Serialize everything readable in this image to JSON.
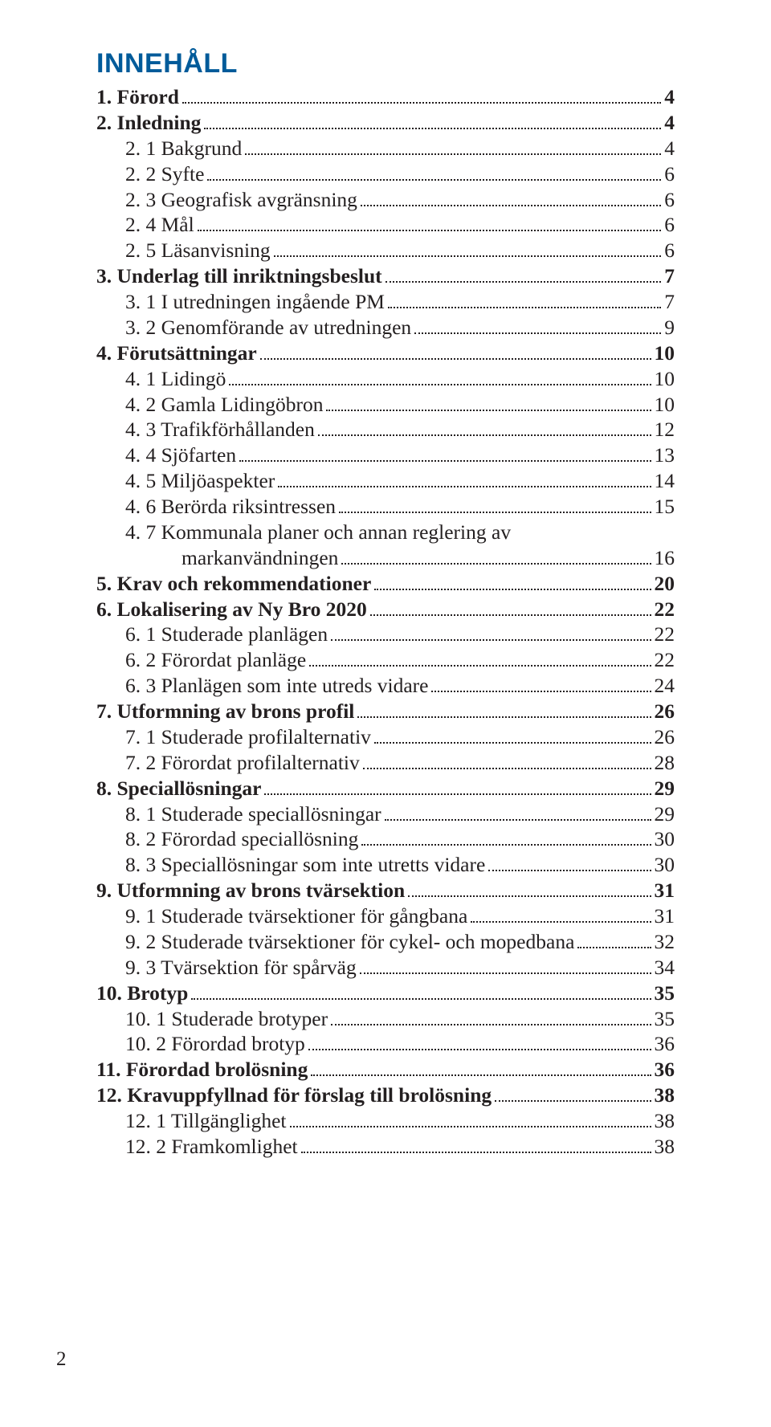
{
  "title": "INNEHÅLL",
  "title_color": "#005b9a",
  "title_fontsize": 34,
  "body_fontsize": 25.5,
  "body_color": "#231f20",
  "page_number": "2",
  "page_number_fontsize": 25,
  "entries": [
    {
      "label": "1. Förord",
      "page": "4",
      "indent": 0,
      "bold": true
    },
    {
      "label": "2. Inledning",
      "page": "4",
      "indent": 0,
      "bold": true
    },
    {
      "label": "2. 1 Bakgrund",
      "page": "4",
      "indent": 1,
      "bold": false
    },
    {
      "label": "2. 2 Syfte",
      "page": "6",
      "indent": 1,
      "bold": false
    },
    {
      "label": "2. 3 Geografisk avgränsning",
      "page": "6",
      "indent": 1,
      "bold": false
    },
    {
      "label": "2. 4 Mål",
      "page": "6",
      "indent": 1,
      "bold": false
    },
    {
      "label": "2. 5 Läsanvisning",
      "page": "6",
      "indent": 1,
      "bold": false
    },
    {
      "label": "3. Underlag till inriktningsbeslut",
      "page": "7",
      "indent": 0,
      "bold": true
    },
    {
      "label": "3. 1 I utredningen ingående PM",
      "page": "7",
      "indent": 1,
      "bold": false
    },
    {
      "label": "3. 2 Genomförande av utredningen",
      "page": "9",
      "indent": 1,
      "bold": false
    },
    {
      "label": "4. Förutsättningar",
      "page": "10",
      "indent": 0,
      "bold": true
    },
    {
      "label": "4. 1 Lidingö",
      "page": "10",
      "indent": 1,
      "bold": false
    },
    {
      "label": "4. 2 Gamla Lidingöbron",
      "page": "10",
      "indent": 1,
      "bold": false
    },
    {
      "label": "4. 3 Trafikförhållanden",
      "page": "12",
      "indent": 1,
      "bold": false
    },
    {
      "label": "4. 4 Sjöfarten",
      "page": "13",
      "indent": 1,
      "bold": false
    },
    {
      "label": "4. 5 Miljöaspekter",
      "page": "14",
      "indent": 1,
      "bold": false
    },
    {
      "label": "4. 6 Berörda riksintressen",
      "page": "15",
      "indent": 1,
      "bold": false
    },
    {
      "label": "4. 7 Kommunala planer och annan reglering av",
      "page": "",
      "indent": 1,
      "bold": false,
      "no_leader": true
    },
    {
      "label": "markanvändningen",
      "page": "16",
      "indent": 2,
      "bold": false
    },
    {
      "label": "5. Krav och rekommendationer",
      "page": "20",
      "indent": 0,
      "bold": true
    },
    {
      "label": "6. Lokalisering av Ny Bro 2020",
      "page": "22",
      "indent": 0,
      "bold": true
    },
    {
      "label": "6. 1 Studerade planlägen",
      "page": "22",
      "indent": 1,
      "bold": false
    },
    {
      "label": "6. 2 Förordat planläge",
      "page": "22",
      "indent": 1,
      "bold": false
    },
    {
      "label": "6. 3 Planlägen som inte utreds vidare",
      "page": "24",
      "indent": 1,
      "bold": false
    },
    {
      "label": "7. Utformning av brons profil",
      "page": "26",
      "indent": 0,
      "bold": true
    },
    {
      "label": "7. 1 Studerade profilalternativ",
      "page": "26",
      "indent": 1,
      "bold": false
    },
    {
      "label": "7. 2 Förordat profilalternativ",
      "page": "28",
      "indent": 1,
      "bold": false
    },
    {
      "label": "8. Speciallösningar",
      "page": "29",
      "indent": 0,
      "bold": true
    },
    {
      "label": "8. 1 Studerade speciallösningar",
      "page": "29",
      "indent": 1,
      "bold": false
    },
    {
      "label": "8. 2 Förordad speciallösning",
      "page": "30",
      "indent": 1,
      "bold": false
    },
    {
      "label": "8. 3 Speciallösningar som inte utretts vidare",
      "page": "30",
      "indent": 1,
      "bold": false
    },
    {
      "label": "9. Utformning av brons tvärsektion",
      "page": "31",
      "indent": 0,
      "bold": true
    },
    {
      "label": "9. 1 Studerade tvärsektioner för gångbana",
      "page": "31",
      "indent": 1,
      "bold": false
    },
    {
      "label": "9. 2 Studerade tvärsektioner för cykel- och mopedbana",
      "page": "32",
      "indent": 1,
      "bold": false
    },
    {
      "label": "9. 3 Tvärsektion för spårväg",
      "page": "34",
      "indent": 1,
      "bold": false
    },
    {
      "label": "10. Brotyp",
      "page": "35",
      "indent": 0,
      "bold": true
    },
    {
      "label": "10. 1 Studerade brotyper",
      "page": "35",
      "indent": 1,
      "bold": false
    },
    {
      "label": "10. 2 Förordad brotyp",
      "page": "36",
      "indent": 1,
      "bold": false
    },
    {
      "label": "11. Förordad brolösning",
      "page": "36",
      "indent": 0,
      "bold": true
    },
    {
      "label": "12. Kravuppfyllnad för förslag till brolösning",
      "page": "38",
      "indent": 0,
      "bold": true
    },
    {
      "label": "12. 1 Tillgänglighet",
      "page": "38",
      "indent": 1,
      "bold": false
    },
    {
      "label": "12. 2 Framkomlighet",
      "page": "38",
      "indent": 1,
      "bold": false
    }
  ]
}
